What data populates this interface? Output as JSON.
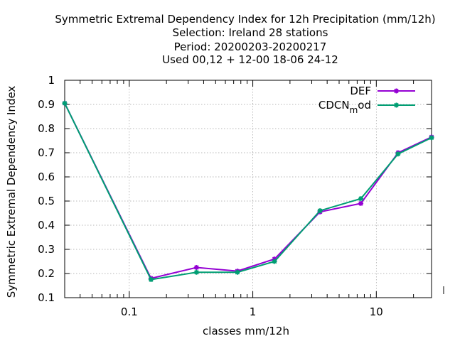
{
  "chart_data": {
    "type": "line",
    "title_lines": [
      "Symmetric Extremal Dependency Index  for 12h Precipitation (mm/12h)",
      "Selection: Ireland      28 stations",
      "Period: 20200203-20200217",
      "Used  00,12  + 12-00 18-06 24-12"
    ],
    "xlabel": "classes mm/12h",
    "ylabel": "Symmetric Extremal Dependency Index",
    "x_scale": "log",
    "xlim": [
      0.03,
      28
    ],
    "ylim": [
      0.1,
      1.0
    ],
    "x_ticks": [
      {
        "value": 0.1,
        "label": "0.1"
      },
      {
        "value": 1,
        "label": "1"
      },
      {
        "value": 10,
        "label": "10"
      }
    ],
    "y_ticks": [
      {
        "value": 0.1,
        "label": "0.1"
      },
      {
        "value": 0.2,
        "label": "0.2"
      },
      {
        "value": 0.3,
        "label": "0.3"
      },
      {
        "value": 0.4,
        "label": "0.4"
      },
      {
        "value": 0.5,
        "label": "0.5"
      },
      {
        "value": 0.6,
        "label": "0.6"
      },
      {
        "value": 0.7,
        "label": "0.7"
      },
      {
        "value": 0.8,
        "label": "0.8"
      },
      {
        "value": 0.9,
        "label": "0.9"
      },
      {
        "value": 1.0,
        "label": "1"
      }
    ],
    "grid": true,
    "legend_position": "top-right",
    "x": [
      0.03,
      0.15,
      0.35,
      0.75,
      1.5,
      3.5,
      7.5,
      15,
      28
    ],
    "series": [
      {
        "name_parts": [
          "DEF"
        ],
        "color": "#9400d3",
        "values": [
          0.905,
          0.18,
          0.225,
          0.21,
          0.26,
          0.455,
          0.49,
          0.7,
          0.765
        ]
      },
      {
        "name_parts": [
          "CDCN",
          "m",
          "od"
        ],
        "color": "#009e73",
        "values": [
          0.905,
          0.175,
          0.205,
          0.205,
          0.25,
          0.46,
          0.51,
          0.695,
          0.762
        ]
      }
    ]
  }
}
